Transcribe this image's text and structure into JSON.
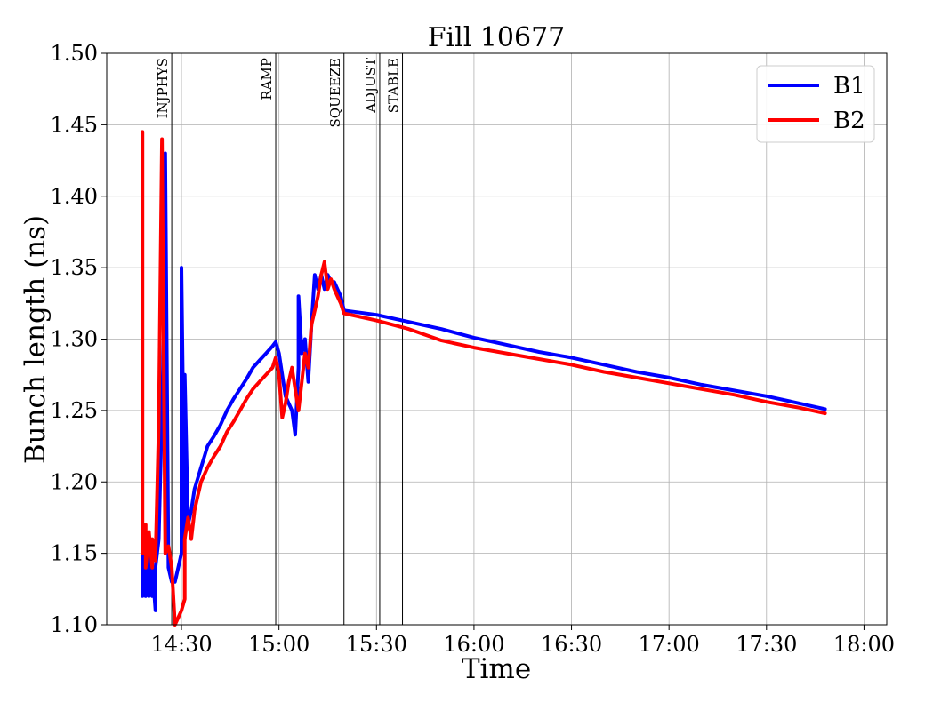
{
  "chart_data": {
    "type": "line",
    "title": "Fill 10677",
    "xlabel": "Time",
    "ylabel": "Bunch length (ns)",
    "xlim": [
      "14:07",
      "18:07"
    ],
    "ylim": [
      1.1,
      1.5
    ],
    "grid": true,
    "legend_position": "top-right",
    "x_ticks": [
      "14:30",
      "15:00",
      "15:30",
      "16:00",
      "16:30",
      "17:00",
      "17:30",
      "18:00"
    ],
    "y_ticks": [
      "1.10",
      "1.15",
      "1.20",
      "1.25",
      "1.30",
      "1.35",
      "1.40",
      "1.45",
      "1.50"
    ],
    "markers": [
      {
        "label": "INJPHYS",
        "x": "14:27"
      },
      {
        "label": "RAMP",
        "x": "14:59"
      },
      {
        "label": "SQUEEZE",
        "x": "15:20"
      },
      {
        "label": "ADJUST",
        "x": "15:31"
      },
      {
        "label": "STABLE",
        "x": "15:38"
      }
    ],
    "series": [
      {
        "name": "B1",
        "color": "#0000ff",
        "points": [
          [
            "14:18",
            1.12
          ],
          [
            "14:18",
            1.15
          ],
          [
            "14:19",
            1.12
          ],
          [
            "14:19",
            1.14
          ],
          [
            "14:20",
            1.12
          ],
          [
            "14:20",
            1.15
          ],
          [
            "14:21",
            1.12
          ],
          [
            "14:21",
            1.14
          ],
          [
            "14:22",
            1.11
          ],
          [
            "14:22",
            1.14
          ],
          [
            "14:23",
            1.16
          ],
          [
            "14:24",
            1.25
          ],
          [
            "14:25",
            1.35
          ],
          [
            "14:25",
            1.43
          ],
          [
            "14:26",
            1.14
          ],
          [
            "14:27",
            1.13
          ],
          [
            "14:28",
            1.13
          ],
          [
            "14:29",
            1.14
          ],
          [
            "14:30",
            1.15
          ],
          [
            "14:30",
            1.35
          ],
          [
            "14:31",
            1.16
          ],
          [
            "14:31",
            1.275
          ],
          [
            "14:32",
            1.17
          ],
          [
            "14:33",
            1.18
          ],
          [
            "14:34",
            1.195
          ],
          [
            "14:36",
            1.21
          ],
          [
            "14:38",
            1.225
          ],
          [
            "14:40",
            1.232
          ],
          [
            "14:42",
            1.24
          ],
          [
            "14:44",
            1.25
          ],
          [
            "14:46",
            1.258
          ],
          [
            "14:48",
            1.265
          ],
          [
            "14:50",
            1.272
          ],
          [
            "14:52",
            1.28
          ],
          [
            "14:54",
            1.285
          ],
          [
            "14:56",
            1.29
          ],
          [
            "14:58",
            1.295
          ],
          [
            "14:59",
            1.298
          ],
          [
            "15:00",
            1.29
          ],
          [
            "15:01",
            1.275
          ],
          [
            "15:02",
            1.26
          ],
          [
            "15:03",
            1.255
          ],
          [
            "15:04",
            1.25
          ],
          [
            "15:05",
            1.233
          ],
          [
            "15:06",
            1.28
          ],
          [
            "15:06",
            1.33
          ],
          [
            "15:07",
            1.29
          ],
          [
            "15:08",
            1.3
          ],
          [
            "15:09",
            1.27
          ],
          [
            "15:10",
            1.31
          ],
          [
            "15:11",
            1.345
          ],
          [
            "15:12",
            1.335
          ],
          [
            "15:13",
            1.345
          ],
          [
            "15:14",
            1.335
          ],
          [
            "15:15",
            1.345
          ],
          [
            "15:16",
            1.34
          ],
          [
            "15:17",
            1.34
          ],
          [
            "15:18",
            1.335
          ],
          [
            "15:19",
            1.33
          ],
          [
            "15:20",
            1.32
          ],
          [
            "15:30",
            1.317
          ],
          [
            "15:40",
            1.312
          ],
          [
            "15:50",
            1.307
          ],
          [
            "16:00",
            1.301
          ],
          [
            "16:10",
            1.296
          ],
          [
            "16:20",
            1.291
          ],
          [
            "16:30",
            1.287
          ],
          [
            "16:40",
            1.282
          ],
          [
            "16:50",
            1.277
          ],
          [
            "17:00",
            1.273
          ],
          [
            "17:10",
            1.268
          ],
          [
            "17:20",
            1.264
          ],
          [
            "17:30",
            1.26
          ],
          [
            "17:40",
            1.255
          ],
          [
            "17:48",
            1.251
          ]
        ]
      },
      {
        "name": "B2",
        "color": "#ff0000",
        "points": [
          [
            "14:18",
            1.445
          ],
          [
            "14:18",
            1.15
          ],
          [
            "14:19",
            1.17
          ],
          [
            "14:19",
            1.14
          ],
          [
            "14:20",
            1.165
          ],
          [
            "14:21",
            1.14
          ],
          [
            "14:21",
            1.16
          ],
          [
            "14:22",
            1.145
          ],
          [
            "14:23",
            1.24
          ],
          [
            "14:24",
            1.44
          ],
          [
            "14:25",
            1.15
          ],
          [
            "14:26",
            1.155
          ],
          [
            "14:27",
            1.14
          ],
          [
            "14:28",
            1.1
          ],
          [
            "14:29",
            1.105
          ],
          [
            "14:30",
            1.11
          ],
          [
            "14:31",
            1.118
          ],
          [
            "14:31",
            1.16
          ],
          [
            "14:32",
            1.175
          ],
          [
            "14:33",
            1.16
          ],
          [
            "14:34",
            1.18
          ],
          [
            "14:35",
            1.19
          ],
          [
            "14:36",
            1.2
          ],
          [
            "14:38",
            1.21
          ],
          [
            "14:40",
            1.218
          ],
          [
            "14:42",
            1.225
          ],
          [
            "14:44",
            1.235
          ],
          [
            "14:46",
            1.242
          ],
          [
            "14:48",
            1.25
          ],
          [
            "14:50",
            1.258
          ],
          [
            "14:52",
            1.265
          ],
          [
            "14:54",
            1.27
          ],
          [
            "14:56",
            1.275
          ],
          [
            "14:58",
            1.28
          ],
          [
            "14:59",
            1.287
          ],
          [
            "15:00",
            1.275
          ],
          [
            "15:01",
            1.245
          ],
          [
            "15:02",
            1.255
          ],
          [
            "15:03",
            1.27
          ],
          [
            "15:04",
            1.28
          ],
          [
            "15:05",
            1.265
          ],
          [
            "15:06",
            1.25
          ],
          [
            "15:07",
            1.27
          ],
          [
            "15:08",
            1.29
          ],
          [
            "15:09",
            1.28
          ],
          [
            "15:10",
            1.31
          ],
          [
            "15:11",
            1.32
          ],
          [
            "15:12",
            1.33
          ],
          [
            "15:13",
            1.345
          ],
          [
            "15:14",
            1.354
          ],
          [
            "15:15",
            1.335
          ],
          [
            "15:16",
            1.342
          ],
          [
            "15:17",
            1.335
          ],
          [
            "15:18",
            1.33
          ],
          [
            "15:19",
            1.325
          ],
          [
            "15:20",
            1.318
          ],
          [
            "15:30",
            1.313
          ],
          [
            "15:40",
            1.307
          ],
          [
            "15:50",
            1.299
          ],
          [
            "16:00",
            1.294
          ],
          [
            "16:10",
            1.29
          ],
          [
            "16:20",
            1.286
          ],
          [
            "16:30",
            1.282
          ],
          [
            "16:40",
            1.277
          ],
          [
            "16:50",
            1.273
          ],
          [
            "17:00",
            1.269
          ],
          [
            "17:10",
            1.265
          ],
          [
            "17:20",
            1.261
          ],
          [
            "17:30",
            1.256
          ],
          [
            "17:40",
            1.252
          ],
          [
            "17:48",
            1.248
          ]
        ]
      }
    ]
  }
}
